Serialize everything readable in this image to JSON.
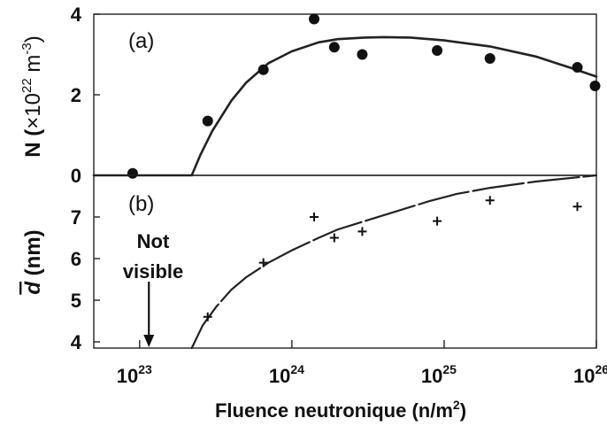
{
  "chart_data": [
    {
      "panel_label": "(a)",
      "type": "scatter",
      "ylabel": {
        "prefix": "N (",
        "times": "×",
        "base": "10",
        "exp": "22",
        "unit": " m",
        "unit_exp": "-3",
        "suffix": ")"
      },
      "xscale": "log",
      "xlim": [
        5e+22,
        1e+26
      ],
      "ylim": [
        0,
        4
      ],
      "yticks": [
        0,
        2,
        4
      ],
      "series": [
        {
          "kind": "points",
          "x": [
            9e+22,
            2.8e+23,
            6.5e+23,
            1.4e+24,
            1.9e+24,
            2.9e+24,
            9e+24,
            2e+25,
            7.5e+25,
            9.8e+25
          ],
          "y": [
            0.05,
            1.35,
            2.62,
            3.88,
            3.18,
            3.0,
            3.1,
            2.9,
            2.68,
            2.22
          ]
        },
        {
          "kind": "fit-curve",
          "x": [
            5e+22,
            2.2e+23,
            2.5e+23,
            3e+23,
            4e+23,
            5e+23,
            7e+23,
            1e+24,
            1.5e+24,
            2e+24,
            3e+24,
            4e+24,
            6e+24,
            1e+25,
            2e+25,
            4e+25,
            7e+25,
            1e+26
          ],
          "y": [
            0.0,
            0.0,
            0.5,
            1.1,
            1.85,
            2.3,
            2.78,
            3.08,
            3.3,
            3.38,
            3.42,
            3.43,
            3.42,
            3.35,
            3.2,
            2.95,
            2.65,
            2.45
          ]
        }
      ]
    },
    {
      "panel_label": "(b)",
      "type": "scatter",
      "ylabel": {
        "symbol": "d",
        "unit": " (nm)"
      },
      "xscale": "log",
      "xlim": [
        5e+22,
        1e+26
      ],
      "ylim": [
        3.85,
        8.0
      ],
      "yticks": [
        4,
        5,
        6,
        7
      ],
      "xticks": [
        {
          "value": 1e+23,
          "base": "10",
          "exp": "23"
        },
        {
          "value": 1e+24,
          "base": "10",
          "exp": "24"
        },
        {
          "value": 1e+25,
          "base": "10",
          "exp": "25"
        },
        {
          "value": 1e+26,
          "base": "10",
          "exp": "26"
        }
      ],
      "xlabel": {
        "text": "Fluence neutronique (n/m",
        "exp": "2",
        "suffix": ")"
      },
      "series": [
        {
          "kind": "plus-markers",
          "x": [
            2.8e+23,
            6.5e+23,
            1.4e+24,
            1.9e+24,
            2.9e+24,
            9e+24,
            2e+25,
            7.5e+25
          ],
          "y": [
            4.6,
            5.9,
            7.0,
            6.5,
            6.65,
            6.9,
            7.4,
            7.25
          ]
        },
        {
          "kind": "fit-curve",
          "x": [
            2.2e+23,
            2.6e+23,
            3.2e+23,
            4e+23,
            5e+23,
            7e+23,
            1e+24,
            1.5e+24,
            2e+24,
            3e+24,
            5e+24,
            8e+24,
            1.2e+25,
            2e+25,
            4e+25,
            1e+26
          ],
          "y": [
            3.85,
            4.4,
            4.85,
            5.25,
            5.55,
            5.9,
            6.2,
            6.5,
            6.7,
            6.9,
            7.15,
            7.38,
            7.55,
            7.7,
            7.85,
            8.0
          ]
        }
      ],
      "annotation": {
        "line1": "Not",
        "line2": "visible",
        "arrow_x": 1.15e+23
      }
    }
  ]
}
